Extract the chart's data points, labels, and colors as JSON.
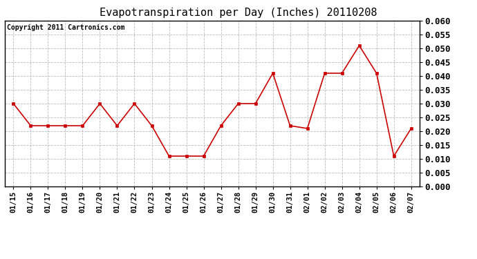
{
  "title": "Evapotranspiration per Day (Inches) 20110208",
  "copyright_text": "Copyright 2011 Cartronics.com",
  "x_labels": [
    "01/15",
    "01/16",
    "01/17",
    "01/18",
    "01/19",
    "01/20",
    "01/21",
    "01/22",
    "01/23",
    "01/24",
    "01/25",
    "01/26",
    "01/27",
    "01/28",
    "01/29",
    "01/30",
    "01/31",
    "02/01",
    "02/02",
    "02/03",
    "02/04",
    "02/05",
    "02/06",
    "02/07"
  ],
  "y_values": [
    0.03,
    0.022,
    0.022,
    0.022,
    0.022,
    0.03,
    0.022,
    0.03,
    0.022,
    0.011,
    0.011,
    0.011,
    0.022,
    0.03,
    0.03,
    0.041,
    0.022,
    0.021,
    0.041,
    0.041,
    0.051,
    0.041,
    0.011,
    0.021
  ],
  "line_color": "#cc0000",
  "marker": "s",
  "marker_size": 3,
  "marker_color": "#cc0000",
  "ylim": [
    0.0,
    0.06
  ],
  "ytick_step": 0.005,
  "background_color": "#ffffff",
  "plot_bg_color": "#ffffff",
  "grid_color": "#bbbbbb",
  "title_fontsize": 11,
  "copyright_fontsize": 7,
  "tick_fontsize": 7.5,
  "ytick_fontsize": 9
}
